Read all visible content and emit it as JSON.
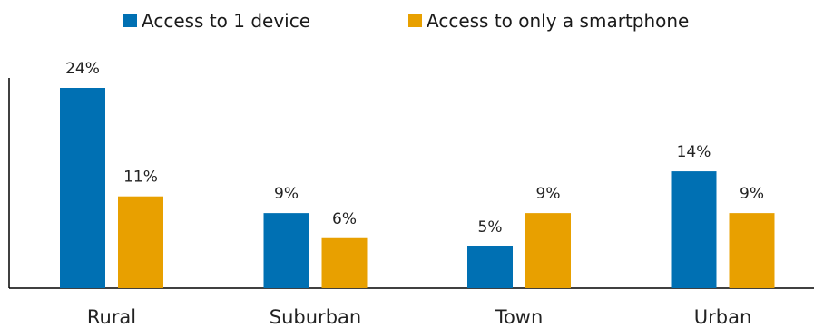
{
  "chart_data": {
    "type": "bar",
    "categories": [
      "Rural",
      "Suburban",
      "Town",
      "Urban"
    ],
    "series": [
      {
        "name": "Access to 1 device",
        "values": [
          24,
          9,
          5,
          14
        ],
        "labels": [
          "24%",
          "9%",
          "5%",
          "14%"
        ],
        "color": "#0070b3"
      },
      {
        "name": "Access to only a smartphone",
        "values": [
          11,
          6,
          9,
          9
        ],
        "labels": [
          "11%",
          "6%",
          "9%",
          "9%"
        ],
        "color": "#e8a000"
      }
    ],
    "unit": "%",
    "ylim": [
      0,
      24
    ],
    "legend_position": "top-center",
    "grid": false,
    "title": "",
    "xlabel": "",
    "ylabel": ""
  }
}
